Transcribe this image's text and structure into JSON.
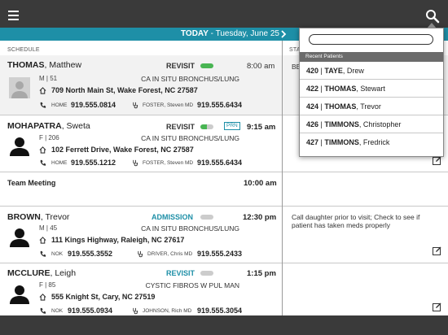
{
  "datebar": {
    "today": "TODAY",
    "date": " - Tuesday, June 25"
  },
  "columns": {
    "schedule": "SCHEDULE",
    "status": "STA"
  },
  "search": {
    "placeholder": "",
    "recent_label": "Recent Patients"
  },
  "recent": [
    {
      "num": "420",
      "last": "TAYE",
      "first": "Drew"
    },
    {
      "num": "422",
      "last": "THOMAS",
      "first": "Stewart"
    },
    {
      "num": "424",
      "last": "THOMAS",
      "first": "Trevor"
    },
    {
      "num": "426",
      "last": "TIMMONS",
      "first": "Christopher"
    },
    {
      "num": "427",
      "last": "TIMMONS",
      "first": "Fredrick"
    }
  ],
  "appointments": [
    {
      "last": "THOMAS",
      "first": "Matthew",
      "visit": "REVISIT",
      "status": "green",
      "prn": "",
      "time": "8:00 am",
      "time_bold": false,
      "sexage": "M | 51",
      "dx": "CA IN SITU BRONCHUS/LUNG",
      "address": "709 North Main St, Wake Forest, NC 27587",
      "contact_label": "HOME",
      "contact_phone": "919.555.0814",
      "md": "FOSTER, Steven MD",
      "md_phone": "919.555.6434",
      "note": "BE"
    },
    {
      "last": "MOHAPATRA",
      "first": "Sweta",
      "visit": "REVISIT",
      "status": "half",
      "prn": "PRN",
      "time": "9:15 am",
      "time_bold": true,
      "sexage": "F | 206",
      "dx": "CA IN SITU BRONCHUS/LUNG",
      "address": "102 Ferrett Drive, Wake Forest, NC 27587",
      "contact_label": "HOME",
      "contact_phone": "919.555.1212",
      "md": "FOSTER, Steven MD",
      "md_phone": "919.555.6434",
      "note": ""
    },
    {
      "last": "BROWN",
      "first": "Trevor",
      "visit": "ADMISSION",
      "status": "grey",
      "prn": "",
      "time": "12:30 pm",
      "time_bold": true,
      "sexage": "M | 45",
      "dx": "CA IN SITU BRONCHUS/LUNG",
      "address": "111 Kings Highway, Raleigh, NC 27617",
      "contact_label": "NOK",
      "contact_phone": "919.555.3552",
      "md": "DRIVER, Chris MD",
      "md_phone": "919.555.2433",
      "note": "Call daughter prior to visit; Check to see if patient has taken meds properly"
    },
    {
      "last": "MCCLURE",
      "first": "Leigh",
      "visit": "REVISIT",
      "status": "grey",
      "prn": "",
      "time": "1:15 pm",
      "time_bold": true,
      "sexage": "F | 85",
      "dx": "CYSTIC FIBROS W PUL MAN",
      "address": "555 Knight St, Cary, NC 27519",
      "contact_label": "NOK",
      "contact_phone": "919.555.0934",
      "md": "JOHNSON, Rich MD",
      "md_phone": "919.555.3054",
      "note": ""
    }
  ],
  "meeting": {
    "title": "Team Meeting",
    "time": "10:00 am"
  },
  "icons": {
    "menu": "menu-icon",
    "search": "search-icon",
    "next": "chevron-right-icon",
    "home": "house-icon",
    "phone": "phone-icon",
    "doctor": "stethoscope-icon",
    "edit": "edit-icon",
    "avatar": "person-silhouette-icon"
  },
  "colors": {
    "accent": "#1e8fa7",
    "topbar": "#3a3a3a",
    "status_green": "#49b553"
  }
}
